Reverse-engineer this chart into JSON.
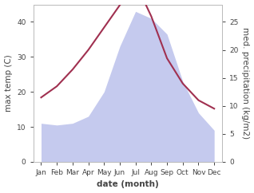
{
  "months": [
    "Jan",
    "Feb",
    "Mar",
    "Apr",
    "May",
    "Jun",
    "Jul",
    "Aug",
    "Sep",
    "Oct",
    "Nov",
    "Dec"
  ],
  "month_indices": [
    1,
    2,
    3,
    4,
    5,
    6,
    7,
    8,
    9,
    10,
    11,
    12
  ],
  "temperature": [
    11.5,
    13.5,
    16.5,
    20.0,
    24.0,
    28.0,
    32.0,
    26.0,
    18.5,
    14.0,
    11.0,
    9.5
  ],
  "rainfall": [
    11.0,
    10.5,
    11.0,
    13.0,
    20.0,
    33.0,
    43.0,
    41.0,
    36.5,
    23.0,
    14.0,
    9.0
  ],
  "temp_color": "#a03050",
  "rainfall_fill_color": "#c5caee",
  "ylabel_left": "max temp (C)",
  "ylabel_right": "med. precipitation (kg/m2)",
  "xlabel": "date (month)",
  "ylim_left": [
    0,
    45
  ],
  "ylim_right": [
    0,
    28.125
  ],
  "yticks_left": [
    0,
    10,
    20,
    30,
    40
  ],
  "yticks_right": [
    0,
    5,
    10,
    15,
    20,
    25
  ],
  "bg_color": "#ffffff",
  "spine_color": "#bbbbbb",
  "tick_color": "#444444",
  "label_fontsize": 7.5,
  "tick_fontsize": 6.5,
  "temp_linewidth": 1.5,
  "fig_width": 3.18,
  "fig_height": 2.42
}
